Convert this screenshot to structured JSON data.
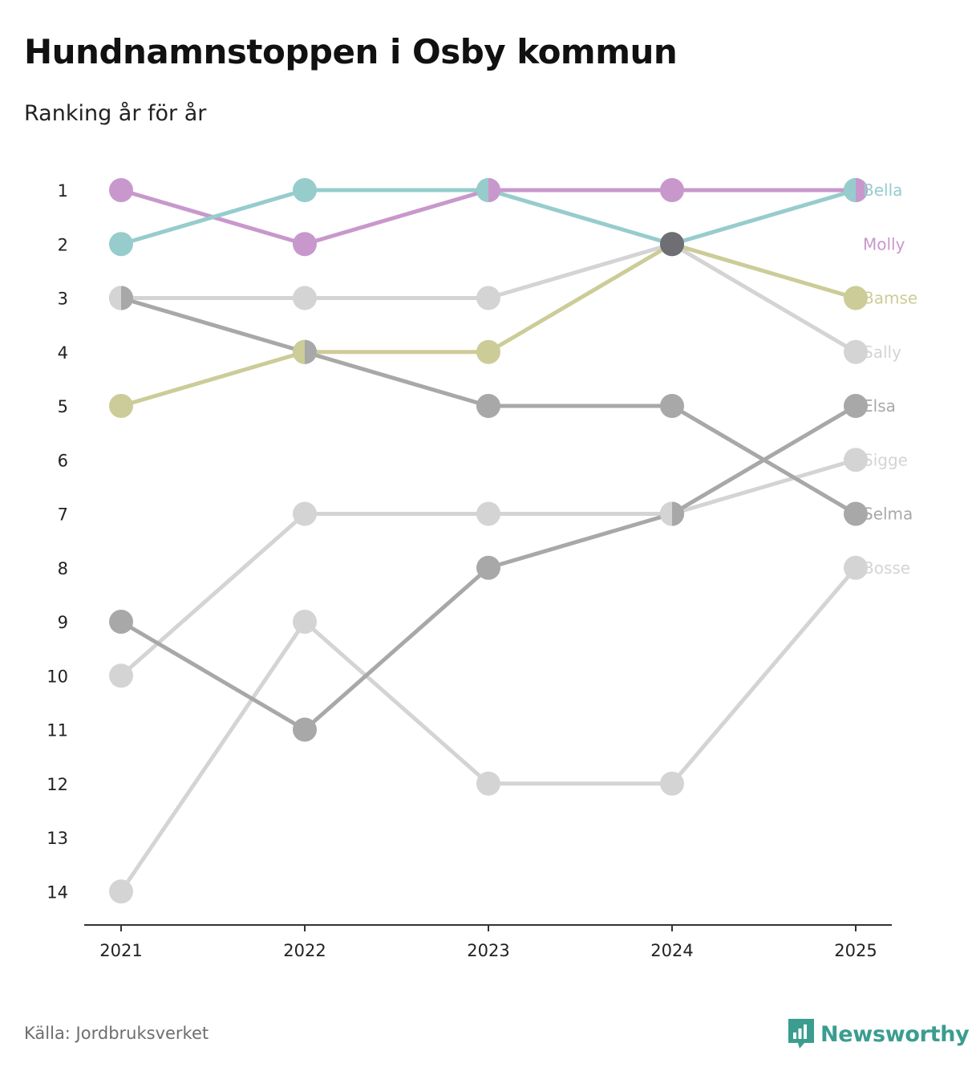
{
  "header": {
    "title": "Hundnamnstoppen i Osby kommun",
    "subtitle": "Ranking år för år"
  },
  "footer": {
    "source": "Källa: Jordbruksverket",
    "brand": "Newsworthy",
    "brand_icon": "newsworthy-logo-icon",
    "brand_color": "#3a9d8f"
  },
  "chart_data": {
    "type": "line",
    "title": "Hundnamnstoppen i Osby kommun",
    "subtitle": "Ranking år för år",
    "xlabel": "",
    "ylabel": "",
    "x": [
      "2021",
      "2022",
      "2023",
      "2024",
      "2025"
    ],
    "y_ticks": [
      "1",
      "2",
      "3",
      "4",
      "5",
      "6",
      "7",
      "8",
      "9",
      "10",
      "11",
      "12",
      "13",
      "14"
    ],
    "ylim": [
      1,
      14
    ],
    "y_reversed": true,
    "grid": false,
    "series": [
      {
        "name": "Bella",
        "values": [
          2,
          1,
          1,
          2,
          1
        ],
        "color": "#96cccc"
      },
      {
        "name": "Molly",
        "values": [
          1,
          2,
          1,
          1,
          1
        ],
        "color": "#c898cc"
      },
      {
        "name": "Bamse",
        "values": [
          5,
          4,
          4,
          2,
          3
        ],
        "color": "#cccc98"
      },
      {
        "name": "Sally",
        "values": [
          3,
          3,
          3,
          2,
          4
        ],
        "color": "#d4d4d4"
      },
      {
        "name": "Elsa",
        "values": [
          9,
          11,
          8,
          7,
          5
        ],
        "color": "#a8a8a8"
      },
      {
        "name": "Sigge",
        "values": [
          10,
          7,
          7,
          7,
          6
        ],
        "color": "#d4d4d4"
      },
      {
        "name": "Selma",
        "values": [
          3,
          4,
          5,
          5,
          7
        ],
        "color": "#a8a8a8"
      },
      {
        "name": "Bosse",
        "values": [
          14,
          9,
          12,
          12,
          8
        ],
        "color": "#d4d4d4"
      }
    ]
  }
}
